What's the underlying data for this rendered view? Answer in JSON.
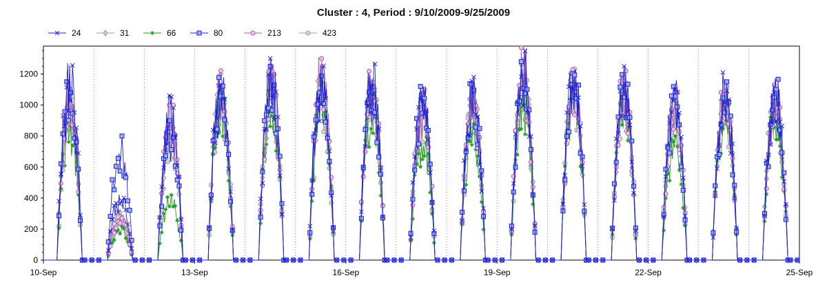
{
  "chart_data": {
    "type": "line",
    "title": "Cluster : 4, Period : 9/10/2009-9/25/2009",
    "xlabel": "",
    "ylabel": "",
    "x_range": [
      "2009-09-10",
      "2009-09-25"
    ],
    "x_ticks": [
      "10-Sep",
      "13-Sep",
      "16-Sep",
      "19-Sep",
      "22-Sep",
      "25-Sep"
    ],
    "ylim": [
      0,
      1380
    ],
    "y_ticks": [
      0,
      200,
      400,
      600,
      800,
      1000,
      1200
    ],
    "grid": "vertical dotted lines at each day",
    "legend_position": "top-left",
    "days": [
      "2009-09-10",
      "2009-09-11",
      "2009-09-12",
      "2009-09-13",
      "2009-09-14",
      "2009-09-15",
      "2009-09-16",
      "2009-09-17",
      "2009-09-18",
      "2009-09-19",
      "2009-09-20",
      "2009-09-21",
      "2009-09-22",
      "2009-09-23",
      "2009-09-24"
    ],
    "series": [
      {
        "name": "24",
        "color": "#1f1fd6",
        "marker": "x",
        "daily_peak": [
          1270,
          440,
          1060,
          1310,
          1300,
          1280,
          1290,
          1160,
          1180,
          1360,
          1310,
          1250,
          1160,
          1210,
          1200
        ]
      },
      {
        "name": "31",
        "color": "#9a9a9a",
        "marker": "diamond",
        "daily_peak": [
          1100,
          330,
          900,
          1200,
          1220,
          1230,
          1200,
          1080,
          1120,
          1300,
          1290,
          1200,
          1100,
          1150,
          1120
        ]
      },
      {
        "name": "66",
        "color": "#1e9a1e",
        "marker": "star",
        "daily_peak": [
          950,
          220,
          420,
          1120,
          1100,
          1150,
          1100,
          880,
          880,
          1150,
          1180,
          1150,
          800,
          1050,
          1050
        ]
      },
      {
        "name": "80",
        "color": "#1f1fd6",
        "marker": "square",
        "daily_peak": [
          1150,
          800,
          900,
          1200,
          1250,
          1240,
          1220,
          1120,
          1150,
          1280,
          1280,
          1200,
          1120,
          1180,
          1170
        ]
      },
      {
        "name": "213",
        "color": "#b05ab0",
        "marker": "circle",
        "daily_peak": [
          1150,
          300,
          1000,
          1280,
          1260,
          1340,
          1230,
          1100,
          1160,
          1370,
          1300,
          1220,
          1100,
          1190,
          1170
        ]
      },
      {
        "name": "423",
        "color": "#9aa59a",
        "marker": "circle",
        "daily_peak": [
          1000,
          300,
          850,
          1150,
          1180,
          1180,
          1180,
          1050,
          1080,
          1250,
          1270,
          1180,
          1050,
          1120,
          1100
        ]
      }
    ]
  }
}
